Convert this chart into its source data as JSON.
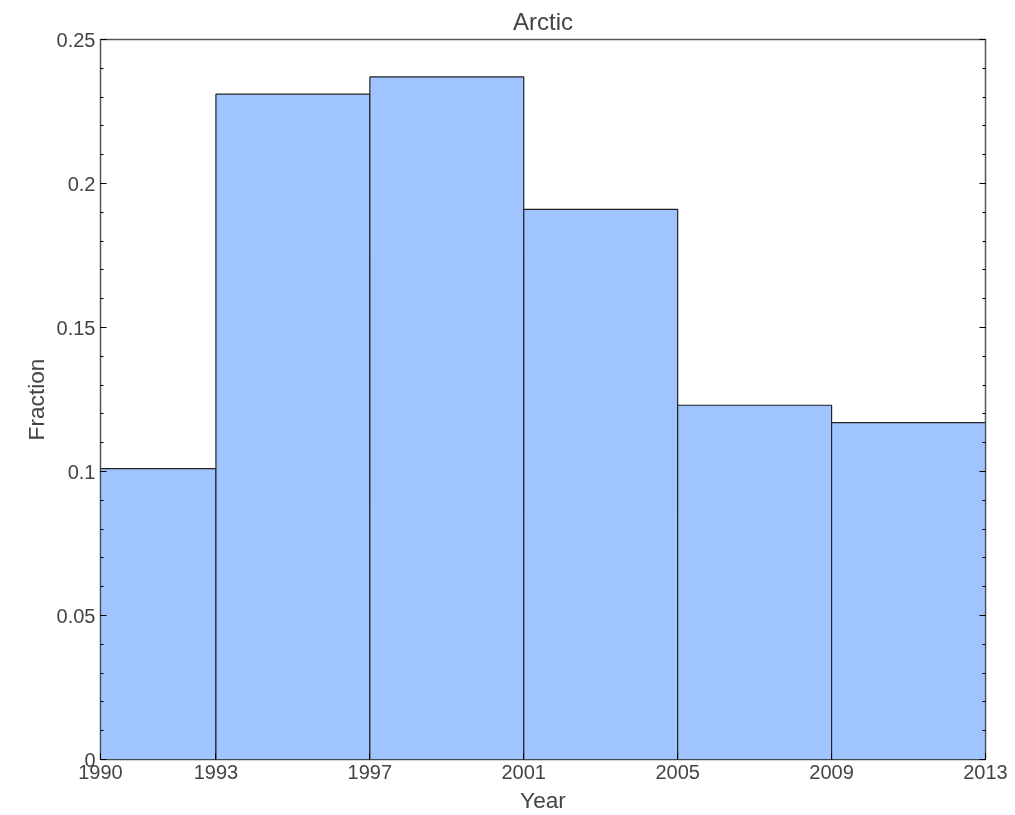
{
  "chart_data": {
    "type": "histogram",
    "title": "Arctic",
    "xlabel": "Year",
    "ylabel": "Fraction",
    "bins": [
      1990,
      1993,
      1997,
      2001,
      2005,
      2009,
      2013
    ],
    "values": [
      0.101,
      0.231,
      0.237,
      0.191,
      0.123,
      0.117
    ],
    "color": "#a0c4ff",
    "xlim": [
      1990,
      2013
    ],
    "xticks": [
      1990,
      1993,
      1997,
      2001,
      2005,
      2009,
      2013
    ],
    "ylim": [
      0,
      0.25
    ],
    "yticks": [
      0,
      0.05,
      0.1,
      0.15,
      0.2,
      0.25
    ],
    "grid": false
  }
}
